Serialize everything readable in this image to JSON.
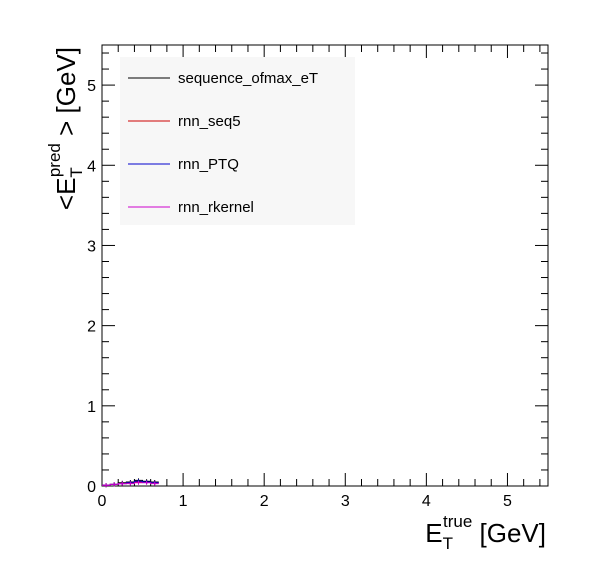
{
  "chart_data": {
    "type": "line",
    "xlabel": {
      "base": "E",
      "sub": "T",
      "sup": "true",
      "unit": "[GeV]"
    },
    "ylabel": {
      "prefix": "<",
      "base": "E",
      "sub": "T",
      "sup": "pred",
      "suffix": ">",
      "unit": "[GeV]"
    },
    "xlim": [
      0,
      5.5
    ],
    "ylim": [
      0,
      5.5
    ],
    "x_ticks": [
      0,
      1,
      2,
      3,
      4,
      5
    ],
    "y_ticks": [
      0,
      1,
      2,
      3,
      4,
      5
    ],
    "x_tick_labels": [
      "0",
      "1",
      "2",
      "3",
      "4",
      "5"
    ],
    "y_tick_labels": [
      "0",
      "1",
      "2",
      "3",
      "4",
      "5"
    ],
    "grid": false,
    "legend_position": "top-left",
    "x": [
      0.0,
      0.1,
      0.2,
      0.3,
      0.4,
      0.5,
      0.6
    ],
    "series": [
      {
        "name": "sequence_ofmax_eT",
        "color": "#000000",
        "values": [
          0.01,
          0.02,
          0.04,
          0.05,
          0.07,
          0.06,
          0.05
        ]
      },
      {
        "name": "rnn_seq5",
        "color": "#cc0000",
        "values": [
          0.01,
          0.02,
          0.03,
          0.04,
          0.05,
          0.05,
          0.04
        ]
      },
      {
        "name": "rnn_PTQ",
        "color": "#0000cc",
        "values": [
          0.01,
          0.02,
          0.03,
          0.04,
          0.06,
          0.05,
          0.04
        ]
      },
      {
        "name": "rnn_rkernel",
        "color": "#cc00cc",
        "values": [
          0.01,
          0.02,
          0.03,
          0.03,
          0.04,
          0.04,
          0.03
        ]
      }
    ]
  }
}
